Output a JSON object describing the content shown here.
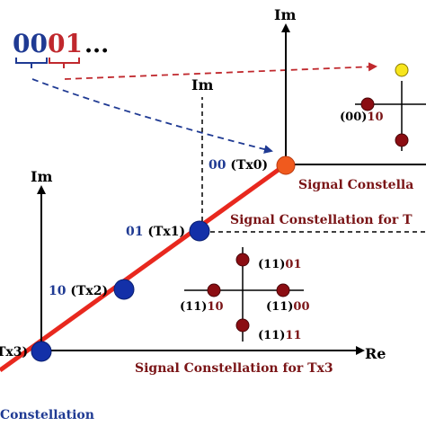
{
  "bit_sequence": {
    "blue_bits": "00",
    "red_bits": "01",
    "ellipsis": "...",
    "blue_color": "#1f3a93",
    "red_color": "#c0282d"
  },
  "colors": {
    "diagonal_line": "#e8281e",
    "node_blue": "#1330a8",
    "node_orange": "#f05a1e",
    "point_darkred": "#8b0d12",
    "point_yellow": "#f7e51c",
    "caption_red": "#7a1416",
    "label_blue": "#1f3a93",
    "axis_black": "#000000",
    "arrow_blue": "#1f3a93",
    "arrow_red": "#c0282d"
  },
  "nodes": [
    {
      "id": "tx0",
      "name_blue": "00",
      "name_black": " (Tx0)"
    },
    {
      "id": "tx1",
      "name_blue": "01",
      "name_black": " (Tx1)"
    },
    {
      "id": "tx2",
      "name_blue": "10",
      "name_black": " (Tx2)"
    },
    {
      "id": "tx3",
      "name_blue": "",
      "name_black": "Tx3)"
    }
  ],
  "axes": {
    "im": "Im",
    "re": "Re"
  },
  "constellation_top": {
    "label_00_10": {
      "paren": "(00)",
      "bits": "10"
    },
    "caption": "Signal Constella"
  },
  "constellation_tx1": {
    "caption": "Signal Constellation for T"
  },
  "constellation_tx3": {
    "label_11_01": {
      "paren": "(11)",
      "bits": "01"
    },
    "label_11_10": {
      "paren": "(11)",
      "bits": "10"
    },
    "label_11_00": {
      "paren": "(11)",
      "bits": "00"
    },
    "label_11_11": {
      "paren": "(11)",
      "bits": "11"
    },
    "caption": "Signal Constellation for Tx3"
  },
  "bottom_left_caption": "Constellation"
}
